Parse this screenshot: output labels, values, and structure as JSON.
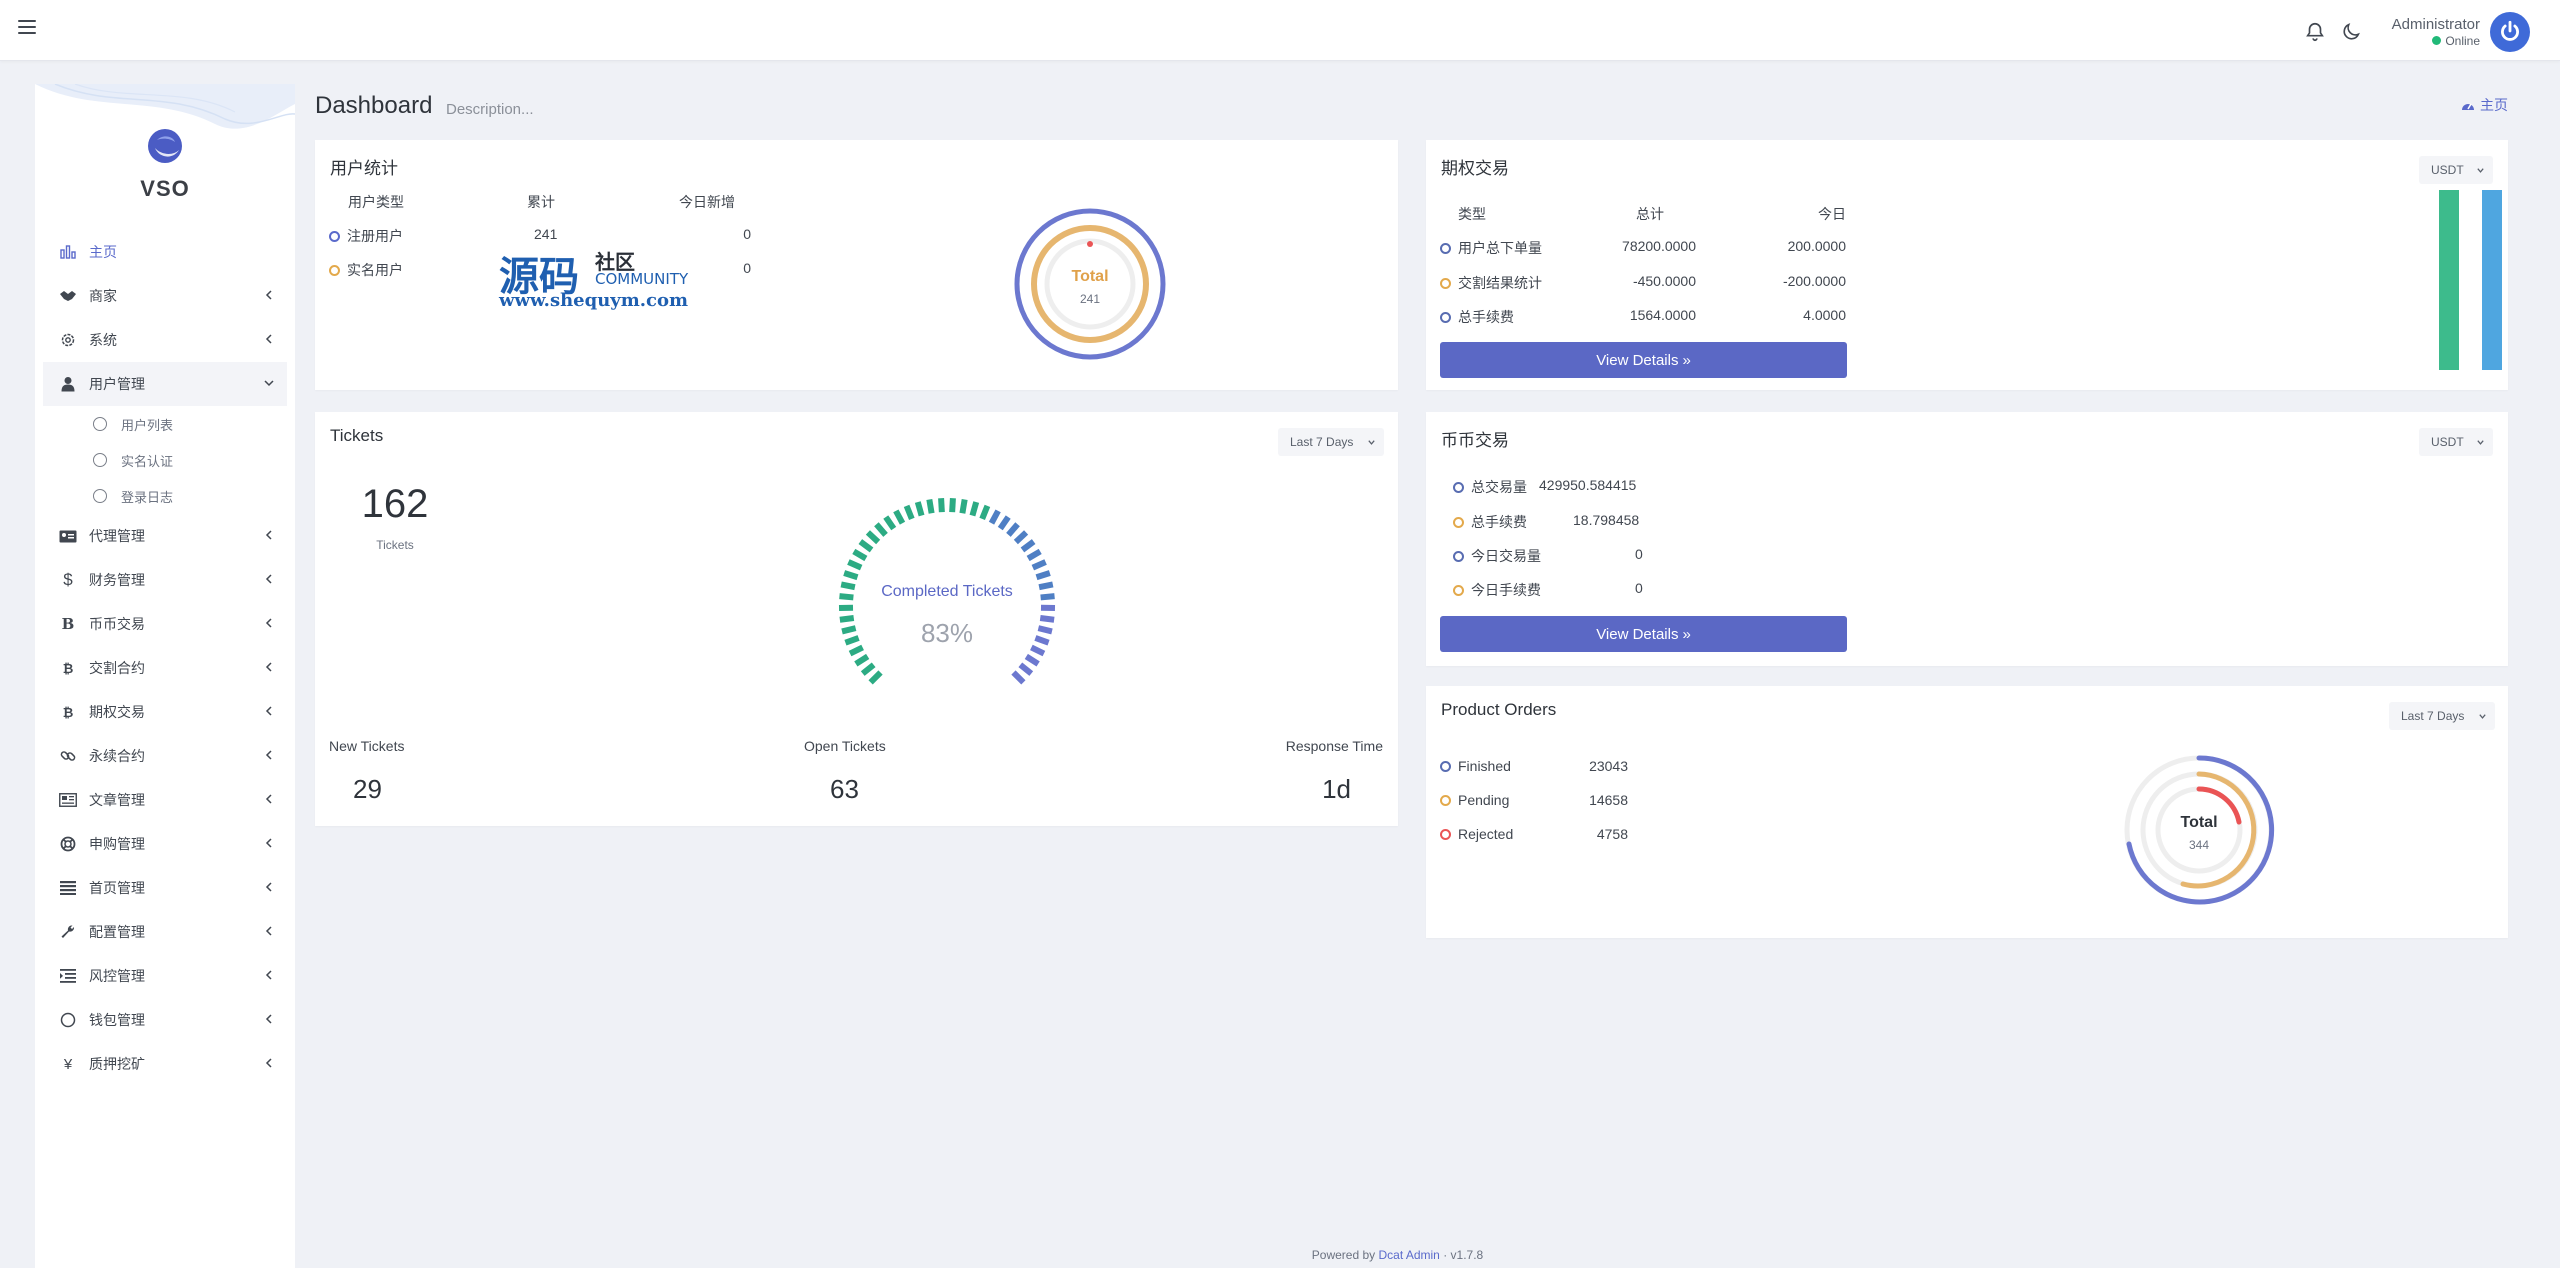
{
  "navbar": {
    "user_name": "Administrator",
    "user_status": "Online"
  },
  "sidebar": {
    "brand": "VSO",
    "items": [
      {
        "label": "主页"
      },
      {
        "label": "商家"
      },
      {
        "label": "系统"
      },
      {
        "label": "用户管理"
      },
      {
        "label": "代理管理"
      },
      {
        "label": "财务管理"
      },
      {
        "label": "币币交易"
      },
      {
        "label": "交割合约"
      },
      {
        "label": "期权交易"
      },
      {
        "label": "永续合约"
      },
      {
        "label": "文章管理"
      },
      {
        "label": "申购管理"
      },
      {
        "label": "首页管理"
      },
      {
        "label": "配置管理"
      },
      {
        "label": "风控管理"
      },
      {
        "label": "钱包管理"
      },
      {
        "label": "质押挖矿"
      }
    ],
    "sub_items": [
      {
        "label": "用户列表"
      },
      {
        "label": "实名认证"
      },
      {
        "label": "登录日志"
      }
    ]
  },
  "page": {
    "title": "Dashboard",
    "description": "Description...",
    "breadcrumb": "主页"
  },
  "user_stats": {
    "title": "用户统计",
    "headers": [
      "用户类型",
      "累计",
      "今日新增"
    ],
    "rows": [
      {
        "type": "注册用户",
        "total": "241",
        "today": "0"
      },
      {
        "type": "实名用户",
        "total": "",
        "today": "0"
      }
    ],
    "ring_label": "Total",
    "ring_value": "241",
    "watermark_cn": "源码",
    "watermark_cn2": "社区",
    "watermark_en": "COMMUNITY",
    "watermark_url": "www.shequym.com"
  },
  "options_trading": {
    "title": "期权交易",
    "dropdown": "USDT",
    "headers": [
      "类型",
      "总计",
      "今日"
    ],
    "rows": [
      {
        "type": "用户总下单量",
        "total": "78200.0000",
        "today": "200.0000"
      },
      {
        "type": "交割结果统计",
        "total": "-450.0000",
        "today": "-200.0000"
      },
      {
        "type": "总手续费",
        "total": "1564.0000",
        "today": "4.0000"
      }
    ],
    "button": "View Details",
    "bars": [
      {
        "value": 1.0,
        "color": "#3dbb8c"
      },
      {
        "value": 1.0,
        "color": "#4fa6e0"
      }
    ]
  },
  "tickets": {
    "title": "Tickets",
    "dropdown": "Last 7 Days",
    "count": "162",
    "count_label": "Tickets",
    "gauge_label": "Completed Tickets",
    "gauge_value": "83%",
    "gauge_percent": 83,
    "stats": [
      {
        "label": "New Tickets",
        "value": "29"
      },
      {
        "label": "Open Tickets",
        "value": "63"
      },
      {
        "label": "Response Time",
        "value": "1d"
      }
    ]
  },
  "coin_trading": {
    "title": "币币交易",
    "dropdown": "USDT",
    "rows": [
      {
        "label": "总交易量",
        "value": "429950.584415"
      },
      {
        "label": "总手续费",
        "value": "18.798458"
      },
      {
        "label": "今日交易量",
        "value": "0"
      },
      {
        "label": "今日手续费",
        "value": "0"
      }
    ],
    "button": "View Details"
  },
  "product_orders": {
    "title": "Product Orders",
    "dropdown": "Last 7 Days",
    "rows": [
      {
        "label": "Finished",
        "value": "23043"
      },
      {
        "label": "Pending",
        "value": "14658"
      },
      {
        "label": "Rejected",
        "value": "4758"
      }
    ],
    "ring_label": "Total",
    "ring_value": "344"
  },
  "footer": {
    "prefix": "Powered by",
    "link": "Dcat Admin",
    "version": "v1.7.8"
  },
  "colors": {
    "primary": "#5b68c5",
    "orange": "#e3a94b",
    "red": "#ea5455",
    "green": "#21b978"
  }
}
